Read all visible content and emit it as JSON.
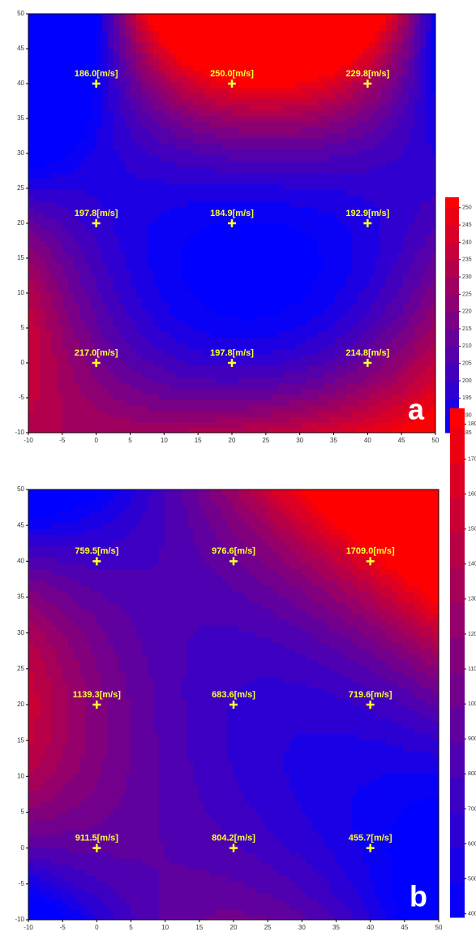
{
  "chart_data": [
    {
      "type": "contour",
      "panel_label": "a",
      "x": [
        0,
        20,
        40,
        0,
        20,
        40,
        0,
        20,
        40
      ],
      "y": [
        40,
        40,
        40,
        20,
        20,
        20,
        0,
        0,
        0
      ],
      "values": [
        186.0,
        250.0,
        229.8,
        197.8,
        184.9,
        192.9,
        217.0,
        197.8,
        214.8
      ],
      "value_labels": [
        "186.0[m/s]",
        "250.0[m/s]",
        "229.8[m/s]",
        "197.8[m/s]",
        "184.9[m/s]",
        "192.9[m/s]",
        "217.0[m/s]",
        "197.8[m/s]",
        "214.8[m/s]"
      ],
      "xlim": [
        -10,
        50
      ],
      "ylim": [
        -10,
        50
      ],
      "xticks": [
        -10,
        -5,
        0,
        5,
        10,
        15,
        20,
        25,
        30,
        35,
        40,
        45,
        50
      ],
      "yticks": [
        -10,
        -5,
        0,
        5,
        10,
        15,
        20,
        25,
        30,
        35,
        40,
        45,
        50
      ],
      "colormap": [
        "#0000ff",
        "#ff0000"
      ],
      "colorbar": {
        "lim": [
          185,
          253
        ],
        "ticks": [
          185,
          190,
          195,
          200,
          205,
          210,
          215,
          220,
          225,
          230,
          235,
          240,
          245,
          250
        ]
      }
    },
    {
      "type": "contour",
      "panel_label": "b",
      "x": [
        0,
        20,
        40,
        0,
        20,
        40,
        0,
        20,
        40
      ],
      "y": [
        40,
        40,
        40,
        20,
        20,
        20,
        0,
        0,
        0
      ],
      "values": [
        759.5,
        976.6,
        1709.0,
        1139.3,
        683.6,
        719.6,
        911.5,
        804.2,
        455.7
      ],
      "value_labels": [
        "759.5[m/s]",
        "976.6[m/s]",
        "1709.0[m/s]",
        "1139.3[m/s]",
        "683.6[m/s]",
        "719.6[m/s]",
        "911.5[m/s]",
        "804.2[m/s]",
        "455.7[m/s]"
      ],
      "xlim": [
        -10,
        50
      ],
      "ylim": [
        -10,
        50
      ],
      "xticks": [
        -10,
        -5,
        0,
        5,
        10,
        15,
        20,
        25,
        30,
        35,
        40,
        45,
        50
      ],
      "yticks": [
        -10,
        -5,
        0,
        5,
        10,
        15,
        20,
        25,
        30,
        35,
        40,
        45,
        50
      ],
      "colormap": [
        "#0000ff",
        "#ff0000"
      ],
      "colorbar": {
        "lim": [
          390,
          1845
        ],
        "ticks": [
          400,
          500,
          600,
          700,
          800,
          900,
          1000,
          1100,
          1200,
          1300,
          1400,
          1500,
          1600,
          1700,
          1800
        ]
      }
    }
  ]
}
